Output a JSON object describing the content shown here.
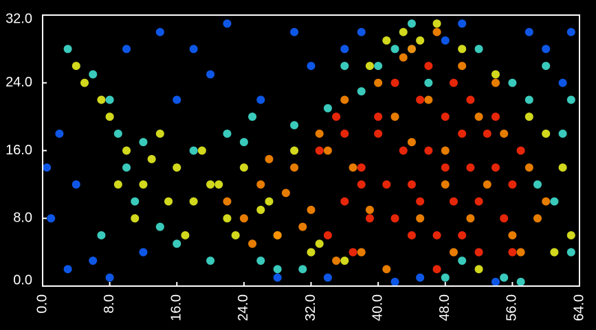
{
  "chart_data": {
    "type": "scatter",
    "xlim": [
      0,
      64
    ],
    "ylim": [
      0,
      32
    ],
    "xticks": [
      {
        "value": 0,
        "label": "0.0"
      },
      {
        "value": 8,
        "label": "8.0"
      },
      {
        "value": 16,
        "label": "16.0"
      },
      {
        "value": 24,
        "label": "24.0"
      },
      {
        "value": 32,
        "label": "32.0"
      },
      {
        "value": 40,
        "label": "40.0"
      },
      {
        "value": 48,
        "label": "48.0"
      },
      {
        "value": 56,
        "label": "56.0"
      },
      {
        "value": 64,
        "label": "64.0"
      }
    ],
    "yticks": [
      {
        "value": 0,
        "label": "0.0"
      },
      {
        "value": 8,
        "label": "8.0"
      },
      {
        "value": 16,
        "label": "16.0"
      },
      {
        "value": 24,
        "label": "24.0"
      },
      {
        "value": 32,
        "label": "32.0"
      }
    ],
    "series": [
      {
        "color": "#1060ff",
        "x": [
          1,
          2,
          4,
          6,
          12,
          14,
          18,
          20,
          22,
          26,
          30,
          32,
          34,
          38,
          42,
          58,
          60,
          62,
          63,
          8,
          16,
          28,
          45,
          54,
          50,
          0.5,
          3,
          10,
          36,
          48
        ],
        "y": [
          8,
          18,
          12,
          3,
          4,
          30,
          28,
          25,
          31,
          22,
          30,
          26,
          1,
          30,
          0.5,
          30,
          28,
          24,
          30,
          1,
          22,
          1,
          1,
          0.5,
          31,
          14,
          2,
          28,
          28,
          29
        ]
      },
      {
        "color": "#40e0d0",
        "x": [
          3,
          6,
          8,
          9,
          10,
          11,
          12,
          14,
          16,
          18,
          20,
          24,
          26,
          28,
          30,
          34,
          38,
          42,
          44,
          46,
          48,
          50,
          52,
          56,
          58,
          60,
          61,
          62,
          63,
          22,
          25,
          31,
          36,
          40,
          44,
          55,
          57,
          59,
          63,
          7
        ],
        "y": [
          28,
          25,
          22,
          18,
          14,
          10,
          17,
          7,
          5,
          16,
          3,
          17,
          3,
          2,
          19,
          21,
          23,
          28,
          31,
          24,
          1,
          3,
          28,
          24,
          22,
          26,
          10,
          18,
          4,
          18,
          20,
          2,
          26,
          26,
          28,
          1,
          0.5,
          12,
          22,
          6
        ]
      },
      {
        "color": "#e8f020",
        "x": [
          10,
          12,
          14,
          16,
          18,
          20,
          22,
          24,
          26,
          28,
          30,
          32,
          9,
          11,
          13,
          15,
          17,
          19,
          21,
          23,
          4,
          5,
          7,
          8,
          41,
          43,
          45,
          47,
          58,
          60,
          62,
          36,
          50,
          54,
          27,
          33,
          52,
          39,
          61,
          63
        ],
        "y": [
          16,
          12,
          18,
          14,
          10,
          12,
          8,
          14,
          9,
          6,
          16,
          4,
          12,
          8,
          15,
          10,
          6,
          16,
          12,
          6,
          26,
          24,
          22,
          20,
          29,
          30,
          29,
          31,
          20,
          18,
          14,
          3,
          28,
          25,
          10,
          5,
          2,
          26,
          4,
          6
        ]
      },
      {
        "color": "#ff8a00",
        "x": [
          22,
          24,
          26,
          28,
          30,
          32,
          34,
          36,
          38,
          40,
          42,
          44,
          46,
          48,
          50,
          52,
          54,
          56,
          58,
          60,
          25,
          29,
          33,
          37,
          41,
          45,
          49,
          53,
          57,
          27,
          31,
          35,
          39,
          43,
          47,
          51,
          55,
          59,
          44,
          48
        ],
        "y": [
          10,
          8,
          12,
          6,
          14,
          9,
          16,
          22,
          4,
          24,
          20,
          28,
          22,
          12,
          26,
          20,
          24,
          6,
          14,
          10,
          5,
          11,
          18,
          14,
          2,
          8,
          4,
          12,
          4,
          15,
          7,
          3,
          9,
          27,
          30,
          8,
          18,
          8,
          17,
          16
        ]
      },
      {
        "color": "#ff2a0a",
        "x": [
          34,
          36,
          38,
          40,
          42,
          44,
          46,
          48,
          50,
          52,
          54,
          56,
          35,
          37,
          39,
          41,
          43,
          45,
          47,
          49,
          51,
          53,
          55,
          33,
          36,
          40,
          44,
          48,
          52,
          56,
          38,
          42,
          46,
          50,
          54,
          45,
          47,
          49,
          51,
          57
        ],
        "y": [
          6,
          10,
          14,
          18,
          8,
          12,
          16,
          20,
          6,
          10,
          14,
          4,
          20,
          4,
          8,
          12,
          16,
          22,
          6,
          10,
          14,
          18,
          8,
          16,
          18,
          20,
          6,
          14,
          4,
          12,
          12,
          24,
          26,
          18,
          20,
          10,
          2,
          24,
          22,
          16
        ]
      }
    ]
  }
}
